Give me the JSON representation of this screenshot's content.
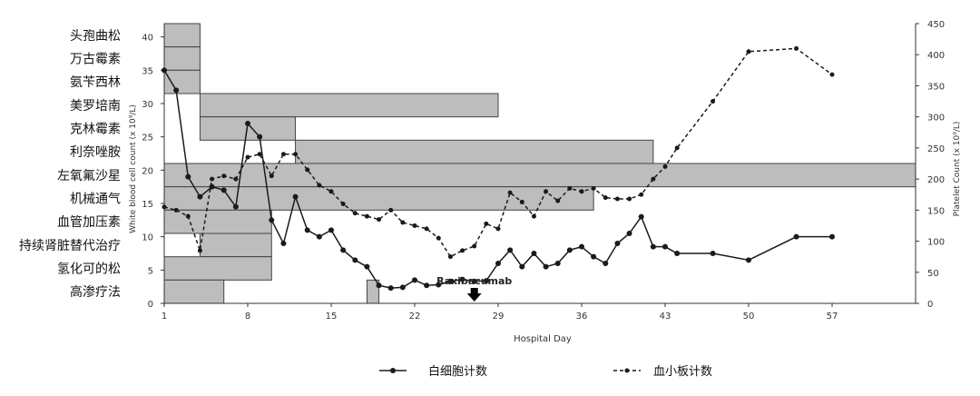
{
  "chart_data": {
    "type": "line",
    "xlabel": "Hospital Day",
    "ylabel_left": "White blood cell count (x 10⁹/L)",
    "ylabel_right": "Platelet Count (x 10⁹/L)",
    "xlim": [
      1,
      64
    ],
    "ylim_left": [
      0,
      42
    ],
    "ylim_right": [
      0,
      450
    ],
    "x_ticks": [
      "1",
      "8",
      "15",
      "22",
      "29",
      "36",
      "43",
      "50",
      "57"
    ],
    "x_tick_values": [
      1,
      8,
      15,
      22,
      29,
      36,
      43,
      50,
      57
    ],
    "y_ticks_left": [
      "0",
      "5",
      "10",
      "15",
      "20",
      "25",
      "30",
      "35",
      "40"
    ],
    "y_tick_values_left": [
      0,
      5,
      10,
      15,
      20,
      25,
      30,
      35,
      40
    ],
    "y_ticks_right": [
      "0",
      "50",
      "100",
      "150",
      "200",
      "250",
      "300",
      "350",
      "400",
      "450"
    ],
    "y_tick_values_right": [
      0,
      50,
      100,
      150,
      200,
      250,
      300,
      350,
      400,
      450
    ],
    "grid": false,
    "legend_position": "bottom",
    "series": [
      {
        "name": "白细胞计数",
        "axis": "left",
        "style": "solid",
        "x": [
          1,
          2,
          3,
          4,
          5,
          6,
          7,
          8,
          9,
          10,
          11,
          12,
          13,
          14,
          15,
          16,
          17,
          18,
          19,
          20,
          21,
          22,
          23,
          24,
          25,
          26,
          27,
          28,
          29,
          30,
          31,
          32,
          33,
          34,
          35,
          36,
          37,
          38,
          39,
          40,
          41,
          42,
          43,
          44,
          47,
          50,
          54,
          57
        ],
        "y": [
          35,
          32,
          19,
          16,
          17.5,
          17,
          14.5,
          27,
          25,
          12.5,
          9,
          16,
          11,
          10,
          11,
          8,
          6.5,
          5.5,
          2.7,
          2.3,
          2.4,
          3.5,
          2.7,
          2.8,
          3.3,
          3.6,
          3.3,
          3.4,
          6,
          8,
          5.5,
          7.5,
          5.5,
          6,
          8,
          8.5,
          7,
          6,
          9,
          10.5,
          13,
          8.5,
          8.5,
          7.5,
          7.5,
          6.5,
          10,
          10
        ],
        "values_approximate": true
      },
      {
        "name": "血小板计数",
        "axis": "right",
        "style": "dashed",
        "x": [
          1,
          2,
          3,
          4,
          5,
          6,
          7,
          8,
          9,
          10,
          11,
          12,
          13,
          14,
          15,
          16,
          17,
          18,
          19,
          20,
          21,
          22,
          23,
          24,
          25,
          26,
          27,
          28,
          29,
          30,
          31,
          32,
          33,
          34,
          35,
          36,
          37,
          38,
          39,
          40,
          41,
          42,
          43,
          44,
          47,
          50,
          54,
          57
        ],
        "y": [
          155,
          150,
          140,
          85,
          200,
          205,
          200,
          235,
          240,
          205,
          240,
          240,
          215,
          190,
          180,
          160,
          145,
          140,
          135,
          150,
          130,
          125,
          120,
          105,
          75,
          85,
          92,
          128,
          120,
          178,
          163,
          140,
          180,
          165,
          185,
          180,
          185,
          170,
          168,
          168,
          175,
          200,
          220,
          250,
          325,
          405,
          410,
          368
        ],
        "values_approximate": true
      }
    ],
    "treatments": [
      {
        "label": "头孢曲松",
        "start": 1,
        "end": 4
      },
      {
        "label": "万古霉素",
        "start": 1,
        "end": 4
      },
      {
        "label": "氨苄西林",
        "start": 1,
        "end": 4
      },
      {
        "label": "美罗培南",
        "start": 4,
        "end": 29
      },
      {
        "label": "克林霉素",
        "start": 4,
        "end": 12
      },
      {
        "label": "利奈唑胺",
        "start": 12,
        "end": 42
      },
      {
        "label": "左氧氟沙星",
        "start": 1,
        "end": 64
      },
      {
        "label": "机械通气",
        "start": 1,
        "end": 37
      },
      {
        "label": "血管加压素",
        "start": 1,
        "end": 10
      },
      {
        "label": "持续肾脏替代治疗",
        "start": 4,
        "end": 10
      },
      {
        "label": "氢化可的松",
        "start": 1,
        "end": 10
      },
      {
        "label": "高渗疗法",
        "start": 1,
        "end": 6
      },
      {
        "label": "",
        "start": 18,
        "end": 19
      }
    ],
    "annotation": {
      "text": "Raxibacumab",
      "day": 27
    }
  },
  "legend": {
    "wbc": "白细胞计数",
    "platelet": "血小板计数"
  },
  "colors": {
    "bar_fill": "#bdbdbd",
    "bar_stroke": "#444444",
    "line": "#1a1a1a"
  }
}
